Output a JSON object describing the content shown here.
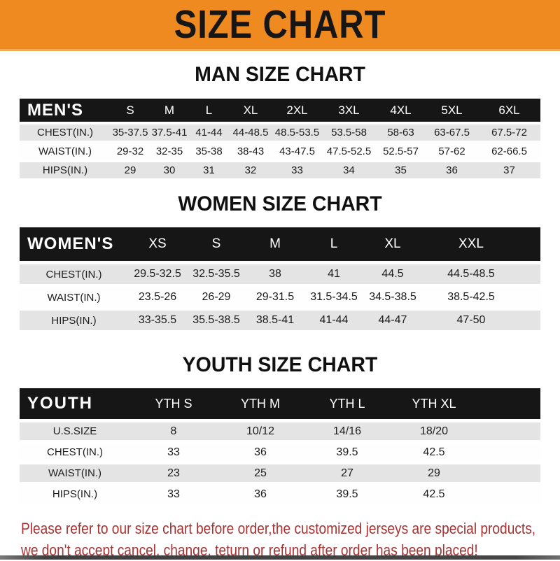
{
  "banner": {
    "title": "SIZE CHART",
    "bg": "#ee8a1f",
    "text_color": "#161616"
  },
  "colors": {
    "table_header_bg": "#161616",
    "table_header_text": "#ffffff",
    "row_alt_bg": "#e4e4e4",
    "disclaimer_text": "#a63232"
  },
  "tables": [
    {
      "id": "men",
      "title": "MAN SIZE CHART",
      "header_label": "MEN'S",
      "columns": [
        "S",
        "M",
        "L",
        "XL",
        "2XL",
        "3XL",
        "4XL",
        "5XL",
        "6XL"
      ],
      "rows": [
        {
          "label": "CHEST(IN.)",
          "values": [
            "35-37.5",
            "37.5-41",
            "41-44",
            "44-48.5",
            "48.5-53.5",
            "53.5-58",
            "58-63",
            "63-67.5",
            "67.5-72"
          ]
        },
        {
          "label": "WAIST(IN.)",
          "values": [
            "29-32",
            "32-35",
            "35-38",
            "38-43",
            "43-47.5",
            "47.5-52.5",
            "52.5-57",
            "57-62",
            "62-66.5"
          ]
        },
        {
          "label": "HIPS(IN.)",
          "values": [
            "29",
            "30",
            "31",
            "32",
            "33",
            "34",
            "35",
            "36",
            "37"
          ]
        }
      ]
    },
    {
      "id": "women",
      "title": "WOMEN SIZE CHART",
      "header_label": "WOMEN'S",
      "columns": [
        "XS",
        "S",
        "M",
        "L",
        "XL",
        "XXL"
      ],
      "rows": [
        {
          "label": "CHEST(IN.)",
          "values": [
            "29.5-32.5",
            "32.5-35.5",
            "38",
            "41",
            "44.5",
            "44.5-48.5"
          ]
        },
        {
          "label": "WAIST(IN.)",
          "values": [
            "23.5-26",
            "26-29",
            "29-31.5",
            "31.5-34.5",
            "34.5-38.5",
            "38.5-42.5"
          ]
        },
        {
          "label": "HIPS(IN.)",
          "values": [
            "33-35.5",
            "35.5-38.5",
            "38.5-41",
            "41-44",
            "44-47",
            "47-50"
          ]
        }
      ]
    },
    {
      "id": "youth",
      "title": "YOUTH SIZE CHART",
      "header_label": "YOUTH",
      "columns": [
        "YTH S",
        "YTH M",
        "YTH L",
        "YTH XL"
      ],
      "rows": [
        {
          "label": "U.S.SIZE",
          "values": [
            "8",
            "10/12",
            "14/16",
            "18/20"
          ]
        },
        {
          "label": "CHEST(IN.)",
          "values": [
            "33",
            "36",
            "39.5",
            "42.5"
          ]
        },
        {
          "label": "WAIST(IN.)",
          "values": [
            "23",
            "25",
            "27",
            "29"
          ]
        },
        {
          "label": "HIPS(IN.)",
          "values": [
            "33",
            "36",
            "39.5",
            "42.5"
          ]
        }
      ]
    }
  ],
  "disclaimer": {
    "line1": "Please refer to our size chart before order,the customized jerseys are special products,",
    "line2": "we don't accept cancel, change, teturn or refund after order has been placed!"
  }
}
